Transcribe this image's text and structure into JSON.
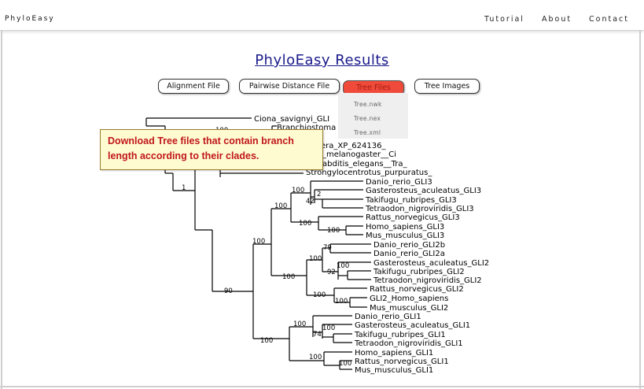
{
  "brand": "PhyloEasy",
  "nav": {
    "tutorial": "Tutorial",
    "about": "About",
    "contact": "Contact"
  },
  "title": "PhyloEasy Results",
  "buttons": {
    "alignment": "Alignment File",
    "distance": "Pairwise Distance File",
    "tree_files": "Tree Files",
    "tree_images": "Tree Images"
  },
  "dropdown": {
    "nwk": "Tree.nwk",
    "nex": "Tree.nex",
    "xml": "Tree.xml"
  },
  "tooltip": "Download Tree files that contain branch length according to their clades.",
  "colors": {
    "title": "#1a1a8c",
    "active_button": "#f04a3a",
    "tooltip_bg": "#fffbd0",
    "tooltip_text": "#c0171c"
  },
  "tree": {
    "leaves": {
      "ciona": "Ciona_savignyi_GLI",
      "branchiostoma": "Branchiostoma",
      "apis": "era_XP_624136_",
      "drosophila": "_melanogaster__Ci",
      "caeno": "abditis_elegans__Tra_",
      "strongylo": "Strongylocentrotus_purpuratus_",
      "dr_gli3": "Danio_rerio_GLI3",
      "ga_gli3": "Gasterosteus_aculeatus_GLI3",
      "tr_gli3": "Takifugu_rubripes_GLI3",
      "tn_gli3": "Tetraodon_nigroviridis_GLI3",
      "rn_gli3": "Rattus_norvegicus_GLI3",
      "hs_gli3": "Homo_sapiens_GLI3",
      "mm_gli3": "Mus_musculus_GLI3",
      "dr_gli2b": "Danio_rerio_GLI2b",
      "dr_gli2a": "Danio_rerio_GLI2a",
      "ga_gli2": "Gasterosteus_aculeatus_GLI2",
      "tr_gli2": "Takifugu_rubripes_GLI2",
      "tn_gli2": "Tetraodon_nigroviridis_GLI2",
      "rn_gli2": "Rattus_norvegicus_GLI2",
      "hs_gli2": "GLI2_Homo_sapiens",
      "mm_gli2": "Mus_musculus_GLI2",
      "dr_gli1": "Danio_rerio_GLI1",
      "ga_gli1": "Gasterosteus_aculeatus_GLI1",
      "tr_gli1": "Takifugu_rubripes_GLI1",
      "tn_gli1": "Tetraodon_nigroviridis_GLI1",
      "hs_gli1": "Homo_sapiens_GLI1",
      "rn_gli1": "Rattus_norvegicus_GLI1",
      "mm_gli1": "Mus_musculus_GLI1"
    },
    "supports": {
      "s100_top": "100",
      "s1": "1",
      "s100_gli3": "100",
      "s2": "2",
      "s42": "42",
      "s100_gli3b": "100",
      "s100_m1": "100",
      "s100_m2": "100",
      "s100_big": "100",
      "s79": "79",
      "s100_g2a": "100",
      "s100_g2b": "100",
      "s92": "92",
      "s100_g2c": "100",
      "s100_g2m": "100",
      "s100_g2n": "100",
      "s90": "90",
      "s100_g1a": "100",
      "s100_g1b": "100",
      "s74": "74",
      "s100_g1c": "100",
      "s100_g1d": "100",
      "s100_g1e": "100"
    }
  }
}
